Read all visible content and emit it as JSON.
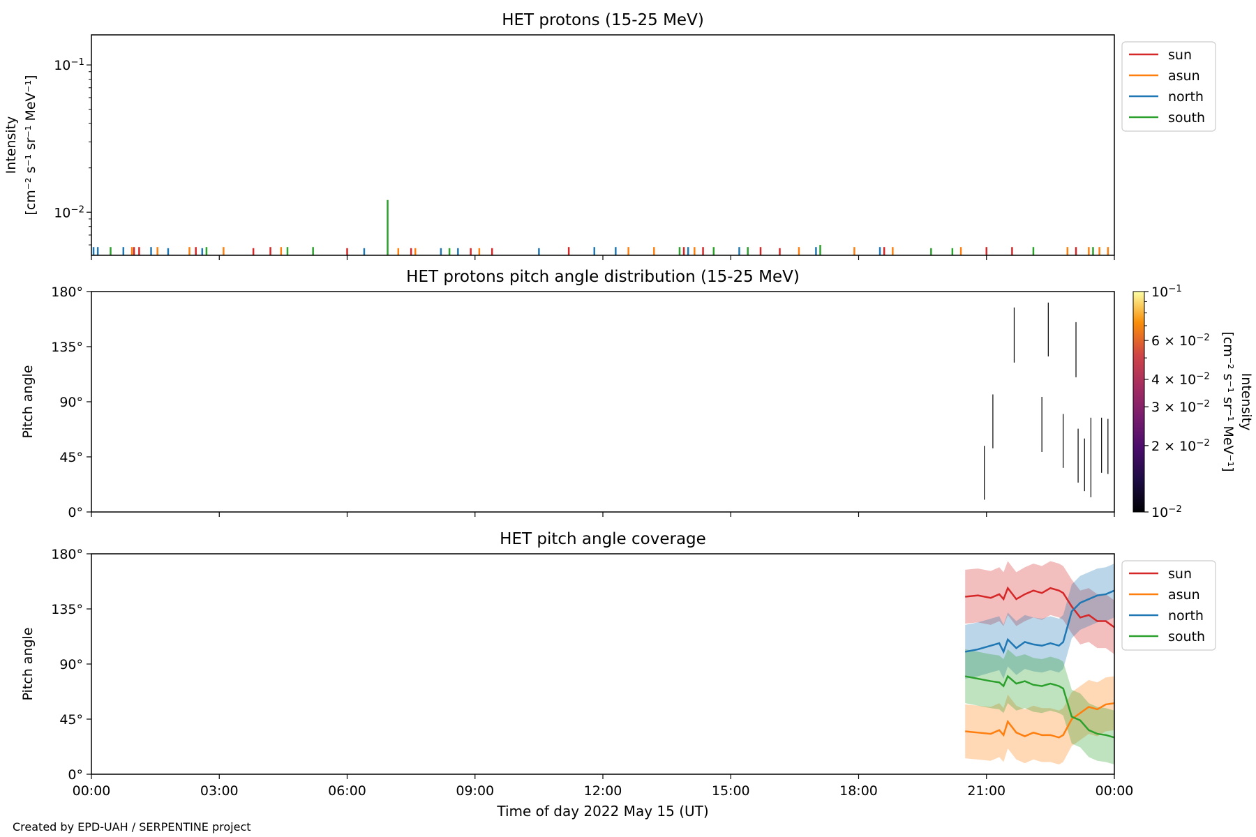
{
  "footer": "Created by EPD-UAH / SERPENTINE project",
  "colors": {
    "sun": "#d62728",
    "asun": "#ff7f0e",
    "north": "#1f77b4",
    "south": "#2ca02c"
  },
  "chart_data": [
    {
      "type": "bar",
      "title": "HET protons (15-25 MeV)",
      "ylabel_line1": "Intensity",
      "ylabel_line2": "[cm⁻² s⁻¹ sr⁻¹ MeV⁻¹]",
      "yscale": "log",
      "ylim": [
        0.0051,
        0.16
      ],
      "yticks": [
        {
          "value": 0.01,
          "base": "10",
          "exp": "−2"
        },
        {
          "value": 0.1,
          "base": "10",
          "exp": "−1"
        }
      ],
      "xlim": [
        0,
        24
      ],
      "grid": false,
      "legend_position": "outside-right-top",
      "legend": [
        "sun",
        "asun",
        "north",
        "south"
      ],
      "series": [
        {
          "name": "sun",
          "color": "#d62728",
          "events": [
            {
              "x": 1.0,
              "y": 0.0058
            },
            {
              "x": 1.12,
              "y": 0.0058
            },
            {
              "x": 2.45,
              "y": 0.0058
            },
            {
              "x": 3.8,
              "y": 0.0057
            },
            {
              "x": 4.2,
              "y": 0.0058
            },
            {
              "x": 6.0,
              "y": 0.0057
            },
            {
              "x": 7.5,
              "y": 0.0057
            },
            {
              "x": 8.9,
              "y": 0.0057
            },
            {
              "x": 9.4,
              "y": 0.0057
            },
            {
              "x": 11.2,
              "y": 0.0058
            },
            {
              "x": 13.9,
              "y": 0.0058
            },
            {
              "x": 14.35,
              "y": 0.0058
            },
            {
              "x": 15.7,
              "y": 0.0058
            },
            {
              "x": 16.15,
              "y": 0.0057
            },
            {
              "x": 18.6,
              "y": 0.0058
            },
            {
              "x": 21.0,
              "y": 0.0058
            },
            {
              "x": 21.6,
              "y": 0.0058
            },
            {
              "x": 23.1,
              "y": 0.0058
            }
          ]
        },
        {
          "name": "asun",
          "color": "#ff7f0e",
          "events": [
            {
              "x": 0.95,
              "y": 0.0058
            },
            {
              "x": 1.55,
              "y": 0.0058
            },
            {
              "x": 2.3,
              "y": 0.0058
            },
            {
              "x": 3.1,
              "y": 0.0058
            },
            {
              "x": 4.45,
              "y": 0.0058
            },
            {
              "x": 7.2,
              "y": 0.0057
            },
            {
              "x": 7.6,
              "y": 0.0057
            },
            {
              "x": 9.1,
              "y": 0.0057
            },
            {
              "x": 12.6,
              "y": 0.0058
            },
            {
              "x": 13.2,
              "y": 0.0058
            },
            {
              "x": 14.15,
              "y": 0.0058
            },
            {
              "x": 16.6,
              "y": 0.0058
            },
            {
              "x": 17.9,
              "y": 0.0058
            },
            {
              "x": 18.8,
              "y": 0.0058
            },
            {
              "x": 20.4,
              "y": 0.0058
            },
            {
              "x": 22.9,
              "y": 0.0058
            },
            {
              "x": 23.4,
              "y": 0.0058
            },
            {
              "x": 23.65,
              "y": 0.0058
            },
            {
              "x": 23.85,
              "y": 0.0058
            }
          ]
        },
        {
          "name": "north",
          "color": "#1f77b4",
          "events": [
            {
              "x": 0.05,
              "y": 0.0058
            },
            {
              "x": 0.15,
              "y": 0.0058
            },
            {
              "x": 0.75,
              "y": 0.0058
            },
            {
              "x": 1.4,
              "y": 0.0058
            },
            {
              "x": 1.8,
              "y": 0.0057
            },
            {
              "x": 2.6,
              "y": 0.0057
            },
            {
              "x": 6.4,
              "y": 0.0057
            },
            {
              "x": 8.2,
              "y": 0.0057
            },
            {
              "x": 8.6,
              "y": 0.0057
            },
            {
              "x": 10.5,
              "y": 0.0057
            },
            {
              "x": 11.8,
              "y": 0.0058
            },
            {
              "x": 12.3,
              "y": 0.0058
            },
            {
              "x": 14.0,
              "y": 0.0058
            },
            {
              "x": 15.2,
              "y": 0.0058
            },
            {
              "x": 17.0,
              "y": 0.0058
            },
            {
              "x": 18.5,
              "y": 0.0058
            }
          ]
        },
        {
          "name": "south",
          "color": "#2ca02c",
          "events": [
            {
              "x": 0.45,
              "y": 0.0058
            },
            {
              "x": 2.7,
              "y": 0.0058
            },
            {
              "x": 4.6,
              "y": 0.0058
            },
            {
              "x": 5.2,
              "y": 0.0058
            },
            {
              "x": 6.95,
              "y": 0.0121
            },
            {
              "x": 8.4,
              "y": 0.0057
            },
            {
              "x": 13.8,
              "y": 0.0058
            },
            {
              "x": 14.6,
              "y": 0.0058
            },
            {
              "x": 15.4,
              "y": 0.0058
            },
            {
              "x": 17.1,
              "y": 0.006
            },
            {
              "x": 19.7,
              "y": 0.0057
            },
            {
              "x": 20.2,
              "y": 0.0057
            },
            {
              "x": 22.1,
              "y": 0.0058
            },
            {
              "x": 23.5,
              "y": 0.0058
            }
          ]
        }
      ]
    },
    {
      "type": "heatmap",
      "title": "HET protons pitch angle distribution (15-25 MeV)",
      "ylabel": "Pitch angle",
      "ylim": [
        0,
        180
      ],
      "yticks": [
        "0°",
        "45°",
        "90°",
        "135°",
        "180°"
      ],
      "ytick_values": [
        0,
        45,
        90,
        135,
        180
      ],
      "xlim": [
        0,
        24
      ],
      "colorbar": {
        "label": "Intensity",
        "label_units": "[cm⁻² s⁻¹ sr⁻¹ MeV⁻¹]",
        "scale": "log",
        "range": [
          0.01,
          0.1
        ],
        "cmap": "inferno",
        "ticks": [
          {
            "value": 0.01,
            "mant": "",
            "base": "10",
            "exp": "−2"
          },
          {
            "value": 0.02,
            "mant": "2 × ",
            "base": "10",
            "exp": "−2"
          },
          {
            "value": 0.03,
            "mant": "3 × ",
            "base": "10",
            "exp": "−2"
          },
          {
            "value": 0.04,
            "mant": "4 × ",
            "base": "10",
            "exp": "−2"
          },
          {
            "value": 0.06,
            "mant": "6 × ",
            "base": "10",
            "exp": "−2"
          },
          {
            "value": 0.1,
            "mant": "",
            "base": "10",
            "exp": "−1"
          }
        ]
      },
      "segments": [
        {
          "x": 20.95,
          "y0": 10,
          "y1": 54
        },
        {
          "x": 21.15,
          "y0": 52,
          "y1": 96
        },
        {
          "x": 21.65,
          "y0": 122,
          "y1": 167
        },
        {
          "x": 22.3,
          "y0": 49,
          "y1": 94
        },
        {
          "x": 22.45,
          "y0": 127,
          "y1": 171
        },
        {
          "x": 22.8,
          "y0": 36,
          "y1": 80
        },
        {
          "x": 23.1,
          "y0": 110,
          "y1": 155
        },
        {
          "x": 23.15,
          "y0": 24,
          "y1": 68
        },
        {
          "x": 23.3,
          "y0": 17,
          "y1": 60
        },
        {
          "x": 23.45,
          "y0": 12,
          "y1": 77
        },
        {
          "x": 23.7,
          "y0": 32,
          "y1": 77
        },
        {
          "x": 23.85,
          "y0": 31,
          "y1": 76
        }
      ]
    },
    {
      "type": "line",
      "title": "HET pitch angle coverage",
      "ylabel": "Pitch angle",
      "xlabel": "Time of day 2022 May 15 (UT)",
      "ylim": [
        0,
        180
      ],
      "yticks": [
        "0°",
        "45°",
        "90°",
        "135°",
        "180°"
      ],
      "ytick_values": [
        0,
        45,
        90,
        135,
        180
      ],
      "xlim": [
        0,
        24
      ],
      "xticks": [
        "00:00",
        "03:00",
        "06:00",
        "09:00",
        "12:00",
        "15:00",
        "18:00",
        "21:00",
        "00:00"
      ],
      "xtick_values": [
        0,
        3,
        6,
        9,
        12,
        15,
        18,
        21,
        24
      ],
      "legend_position": "outside-right-top",
      "legend": [
        "sun",
        "asun",
        "north",
        "south"
      ],
      "band_halfwidth_deg": 22,
      "series": [
        {
          "name": "sun",
          "color": "#d62728",
          "x": [
            20.5,
            20.8,
            21.1,
            21.3,
            21.4,
            21.5,
            21.7,
            21.9,
            22.1,
            22.3,
            22.5,
            22.7,
            22.8,
            23.0,
            23.2,
            23.4,
            23.6,
            23.8,
            24.0
          ],
          "y": [
            145,
            146,
            144,
            147,
            143,
            152,
            143,
            147,
            150,
            148,
            152,
            150,
            148,
            137,
            128,
            130,
            125,
            125,
            120
          ]
        },
        {
          "name": "asun",
          "color": "#ff7f0e",
          "x": [
            20.5,
            20.8,
            21.1,
            21.3,
            21.4,
            21.5,
            21.7,
            21.9,
            22.1,
            22.3,
            22.5,
            22.7,
            22.8,
            23.0,
            23.2,
            23.4,
            23.6,
            23.8,
            24.0
          ],
          "y": [
            35,
            34,
            33,
            36,
            32,
            43,
            34,
            31,
            34,
            32,
            32,
            30,
            32,
            45,
            50,
            55,
            53,
            57,
            58
          ]
        },
        {
          "name": "north",
          "color": "#1f77b4",
          "x": [
            20.5,
            20.8,
            21.1,
            21.3,
            21.4,
            21.5,
            21.7,
            21.9,
            22.1,
            22.3,
            22.5,
            22.7,
            22.8,
            23.0,
            23.2,
            23.4,
            23.6,
            23.8,
            24.0
          ],
          "y": [
            100,
            102,
            105,
            107,
            100,
            110,
            103,
            108,
            106,
            105,
            107,
            105,
            108,
            133,
            140,
            143,
            146,
            147,
            150
          ]
        },
        {
          "name": "south",
          "color": "#2ca02c",
          "x": [
            20.5,
            20.8,
            21.1,
            21.3,
            21.4,
            21.5,
            21.7,
            21.9,
            22.1,
            22.3,
            22.5,
            22.7,
            22.8,
            23.0,
            23.2,
            23.4,
            23.6,
            23.8,
            24.0
          ],
          "y": [
            80,
            78,
            76,
            75,
            72,
            80,
            74,
            76,
            73,
            72,
            74,
            72,
            70,
            47,
            44,
            36,
            33,
            32,
            30
          ]
        }
      ]
    }
  ]
}
